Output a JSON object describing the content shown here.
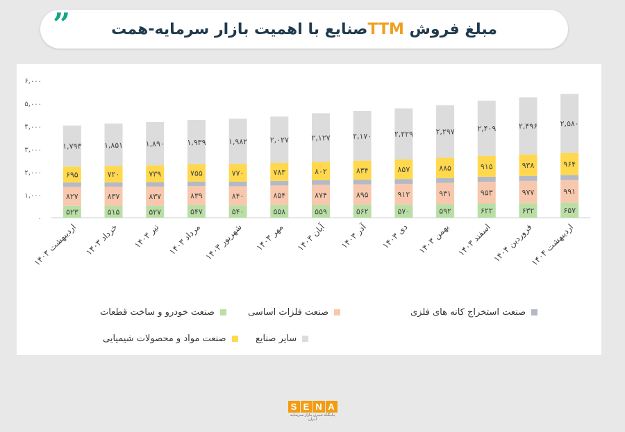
{
  "header": {
    "title_part1": "مبلغ فروش",
    "title_highlight": "TTM",
    "title_part2": "صنایع با اهمیت بازار سرمایه-همت",
    "quote_left": "“",
    "quote_right": "”"
  },
  "colors": {
    "pill_bg": "#ffffff",
    "title_text": "#1f3a4d",
    "highlight": "#f0a020",
    "quote": "#17a589"
  },
  "logo": {
    "letters": [
      "S",
      "E",
      "N",
      "A"
    ],
    "subtitle": "پـایـگـاه خـبـری بـازار سـرمـایـه ایـران"
  },
  "chart_data": {
    "type": "bar",
    "stacked": true,
    "ylim": [
      0,
      6000
    ],
    "y_ticks": [
      "۰",
      "۱,۰۰۰",
      "۲,۰۰۰",
      "۳,۰۰۰",
      "۴,۰۰۰",
      "۵,۰۰۰",
      "۶,۰۰۰"
    ],
    "y_tick_values": [
      0,
      1000,
      2000,
      3000,
      4000,
      5000,
      6000
    ],
    "grid": false,
    "legend_position": "bottom",
    "categories": [
      "اردیبهشت ۱۴۰۳",
      "خرداد ۱۴۰۳",
      "تیر ۱۴۰۳",
      "مرداد ۱۴۰۳",
      "شهریور ۱۴۰۳",
      "مهر ۱۴۰۳",
      "آبان ۱۴۰۳",
      "آذر ۱۴۰۳",
      "دی ۱۴۰۳",
      "بهمن ۱۴۰۳",
      "اسفند ۱۴۰۳",
      "فروردین ۱۴۰۴",
      "اردیبهشت ۱۴۰۴"
    ],
    "series": [
      {
        "name": "صنعت خودرو و ساخت قطعات",
        "color": "#b9dfa6",
        "values": [
          523,
          515,
          527,
          547,
          540,
          558,
          559,
          562,
          570,
          592,
          622,
          632,
          657
        ],
        "labels": [
          "۵۲۳",
          "۵۱۵",
          "۵۲۷",
          "۵۴۷",
          "۵۴۰",
          "۵۵۸",
          "۵۵۹",
          "۵۶۲",
          "۵۷۰",
          "۵۹۲",
          "۶۲۲",
          "۶۳۲",
          "۶۵۷"
        ]
      },
      {
        "name": "صنعت فلزات اساسی",
        "color": "#f7c8ad",
        "values": [
          827,
          837,
          837,
          839,
          840,
          854,
          874,
          895,
          912,
          931,
          953,
          977,
          991
        ],
        "labels": [
          "۸۲۷",
          "۸۳۷",
          "۸۳۷",
          "۸۳۹",
          "۸۴۰",
          "۸۵۴",
          "۸۷۴",
          "۸۹۵",
          "۹۱۲",
          "۹۳۱",
          "۹۵۳",
          "۹۷۷",
          "۹۹۱"
        ]
      },
      {
        "name": "صنعت استخراج کانه های فلزی",
        "color": "#b4b9c7",
        "values": [
          190,
          190,
          192,
          195,
          197,
          200,
          203,
          205,
          208,
          212,
          215,
          218,
          220
        ],
        "labels": []
      },
      {
        "name": "صنعت مواد و محصولات شیمیایی",
        "color": "#ffd84d",
        "values": [
          695,
          720,
          739,
          755,
          770,
          783,
          802,
          834,
          857,
          885,
          915,
          938,
          964
        ],
        "labels": [
          "۶۹۵",
          "۷۲۰",
          "۷۳۹",
          "۷۵۵",
          "۷۷۰",
          "۷۸۳",
          "۸۰۲",
          "۸۳۴",
          "۸۵۷",
          "۸۸۵",
          "۹۱۵",
          "۹۳۸",
          "۹۶۴"
        ]
      },
      {
        "name": "سایر صنایع",
        "color": "#dcdcdc",
        "values": [
          1793,
          1851,
          1890,
          1939,
          1982,
          2027,
          2127,
          2170,
          2229,
          2297,
          2409,
          2496,
          2580
        ],
        "labels": [
          "۱,۷۹۳",
          "۱,۸۵۱",
          "۱,۸۹۰",
          "۱,۹۳۹",
          "۱,۹۸۲",
          "۲,۰۲۷",
          "۲,۱۲۷",
          "۲,۱۷۰",
          "۲,۲۲۹",
          "۲,۲۹۷",
          "۲,۴۰۹",
          "۲,۴۹۶",
          "۲,۵۸۰"
        ]
      }
    ]
  }
}
